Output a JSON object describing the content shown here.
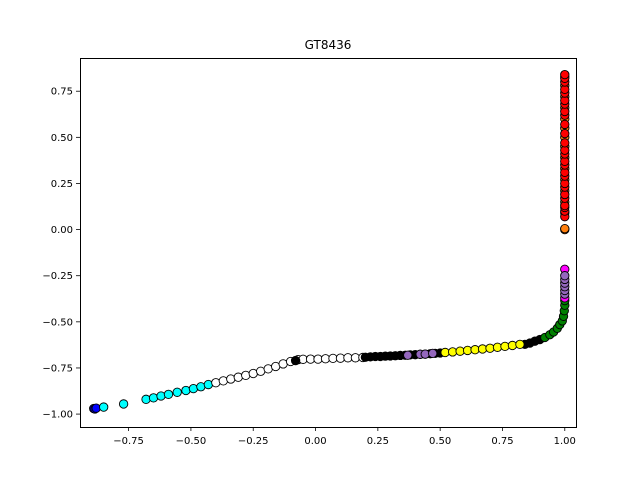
{
  "chart_data": {
    "type": "scatter",
    "title": "GT8436",
    "xlabel": "",
    "ylabel": "",
    "xlim": [
      -0.945,
      1.045
    ],
    "ylim": [
      -1.07,
      0.93
    ],
    "xticks": [
      -0.75,
      -0.5,
      -0.25,
      0.0,
      0.25,
      0.5,
      0.75,
      1.0
    ],
    "xtick_labels": [
      "−0.75",
      "−0.50",
      "−0.25",
      "0.00",
      "0.25",
      "0.50",
      "0.75",
      "1.00"
    ],
    "yticks": [
      -1.0,
      -0.75,
      -0.5,
      -0.25,
      0.0,
      0.25,
      0.5,
      0.75
    ],
    "ytick_labels": [
      "−1.00",
      "−0.75",
      "−0.50",
      "−0.25",
      "0.00",
      "0.25",
      "0.50",
      "0.75"
    ],
    "grid": false,
    "legend": "none",
    "marker_edge_color": "#000000",
    "groups": [
      {
        "color": "#0000ff",
        "points": [
          [
            -0.89,
            -0.97
          ],
          [
            -0.885,
            -0.972
          ],
          [
            -0.88,
            -0.968
          ]
        ]
      },
      {
        "color": "#00ffff",
        "points": [
          [
            -0.85,
            -0.962
          ],
          [
            -0.77,
            -0.945
          ],
          [
            -0.68,
            -0.92
          ],
          [
            -0.65,
            -0.912
          ],
          [
            -0.62,
            -0.902
          ],
          [
            -0.59,
            -0.893
          ],
          [
            -0.555,
            -0.882
          ],
          [
            -0.52,
            -0.872
          ],
          [
            -0.49,
            -0.862
          ],
          [
            -0.46,
            -0.852
          ],
          [
            -0.43,
            -0.84
          ]
        ]
      },
      {
        "color": "#ffffff",
        "points": [
          [
            -0.4,
            -0.83
          ],
          [
            -0.37,
            -0.82
          ],
          [
            -0.34,
            -0.81
          ],
          [
            -0.31,
            -0.8
          ],
          [
            -0.28,
            -0.79
          ],
          [
            -0.25,
            -0.78
          ],
          [
            -0.22,
            -0.768
          ],
          [
            -0.19,
            -0.755
          ],
          [
            -0.16,
            -0.742
          ],
          [
            -0.13,
            -0.728
          ],
          [
            -0.1,
            -0.715
          ],
          [
            -0.07,
            -0.705
          ],
          [
            -0.05,
            -0.703
          ],
          [
            -0.02,
            -0.702
          ],
          [
            0.01,
            -0.702
          ],
          [
            0.04,
            -0.7
          ],
          [
            0.07,
            -0.698
          ],
          [
            0.1,
            -0.697
          ],
          [
            0.13,
            -0.695
          ],
          [
            0.16,
            -0.695
          ],
          [
            0.19,
            -0.693
          ]
        ]
      },
      {
        "color": "#000000",
        "points": [
          [
            -0.08,
            -0.71
          ],
          [
            0.2,
            -0.692
          ],
          [
            0.22,
            -0.69
          ],
          [
            0.24,
            -0.688
          ],
          [
            0.26,
            -0.688
          ],
          [
            0.28,
            -0.686
          ],
          [
            0.3,
            -0.685
          ],
          [
            0.32,
            -0.684
          ],
          [
            0.34,
            -0.682
          ],
          [
            0.36,
            -0.681
          ],
          [
            0.38,
            -0.679
          ],
          [
            0.4,
            -0.678
          ],
          [
            0.42,
            -0.676
          ],
          [
            0.44,
            -0.675
          ],
          [
            0.46,
            -0.673
          ],
          [
            0.48,
            -0.671
          ],
          [
            0.5,
            -0.669
          ],
          [
            0.84,
            -0.622
          ],
          [
            0.86,
            -0.615
          ],
          [
            0.88,
            -0.605
          ],
          [
            0.9,
            -0.596
          ]
        ]
      },
      {
        "color": "#9467bd",
        "points": [
          [
            0.37,
            -0.681
          ],
          [
            0.42,
            -0.676
          ],
          [
            0.44,
            -0.675
          ],
          [
            0.47,
            -0.671
          ]
        ]
      },
      {
        "color": "#ffff00",
        "points": [
          [
            0.52,
            -0.666
          ],
          [
            0.55,
            -0.663
          ],
          [
            0.58,
            -0.659
          ],
          [
            0.61,
            -0.655
          ],
          [
            0.64,
            -0.651
          ],
          [
            0.67,
            -0.647
          ],
          [
            0.7,
            -0.643
          ],
          [
            0.73,
            -0.638
          ],
          [
            0.76,
            -0.633
          ],
          [
            0.79,
            -0.628
          ],
          [
            0.82,
            -0.622
          ]
        ]
      },
      {
        "color": "#008000",
        "points": [
          [
            0.92,
            -0.585
          ],
          [
            0.94,
            -0.57
          ],
          [
            0.955,
            -0.555
          ],
          [
            0.97,
            -0.535
          ],
          [
            0.98,
            -0.515
          ],
          [
            0.99,
            -0.495
          ],
          [
            0.995,
            -0.47
          ],
          [
            0.998,
            -0.44
          ],
          [
            1.0,
            -0.41
          ],
          [
            1.0,
            -0.385
          ]
        ]
      },
      {
        "color": "#ff00ff",
        "points": [
          [
            1.0,
            -0.37
          ],
          [
            1.0,
            -0.215
          ]
        ]
      },
      {
        "color": "#9467bd",
        "points": [
          [
            1.0,
            -0.35
          ],
          [
            1.0,
            -0.33
          ],
          [
            1.0,
            -0.31
          ],
          [
            1.0,
            -0.29
          ],
          [
            1.0,
            -0.27
          ],
          [
            1.0,
            -0.25
          ]
        ]
      },
      {
        "color": "#ff7f0e",
        "points": [
          [
            1.0,
            0.0
          ],
          [
            1.0,
            0.005
          ],
          [
            1.0,
            0.09
          ],
          [
            1.0,
            0.15
          ],
          [
            1.0,
            0.21
          ],
          [
            1.0,
            0.27
          ],
          [
            1.0,
            0.33
          ],
          [
            1.0,
            0.39
          ],
          [
            1.0,
            0.45
          ],
          [
            1.0,
            0.5
          ],
          [
            1.0,
            0.55
          ],
          [
            1.0,
            0.6
          ],
          [
            1.0,
            0.66
          ],
          [
            1.0,
            0.72
          ],
          [
            1.0,
            0.78
          ],
          [
            1.0,
            0.83
          ]
        ]
      },
      {
        "color": "#ff0000",
        "points": [
          [
            1.0,
            0.07
          ],
          [
            1.0,
            0.1
          ],
          [
            1.0,
            0.12
          ],
          [
            1.0,
            0.13
          ],
          [
            1.0,
            0.17
          ],
          [
            1.0,
            0.19
          ],
          [
            1.0,
            0.23
          ],
          [
            1.0,
            0.25
          ],
          [
            1.0,
            0.29
          ],
          [
            1.0,
            0.31
          ],
          [
            1.0,
            0.35
          ],
          [
            1.0,
            0.37
          ],
          [
            1.0,
            0.41
          ],
          [
            1.0,
            0.43
          ],
          [
            1.0,
            0.47
          ],
          [
            1.0,
            0.52
          ],
          [
            1.0,
            0.57
          ],
          [
            1.0,
            0.62
          ],
          [
            1.0,
            0.64
          ],
          [
            1.0,
            0.68
          ],
          [
            1.0,
            0.7
          ],
          [
            1.0,
            0.74
          ],
          [
            1.0,
            0.76
          ],
          [
            1.0,
            0.8
          ],
          [
            1.0,
            0.82
          ],
          [
            1.0,
            0.84
          ]
        ]
      }
    ]
  }
}
